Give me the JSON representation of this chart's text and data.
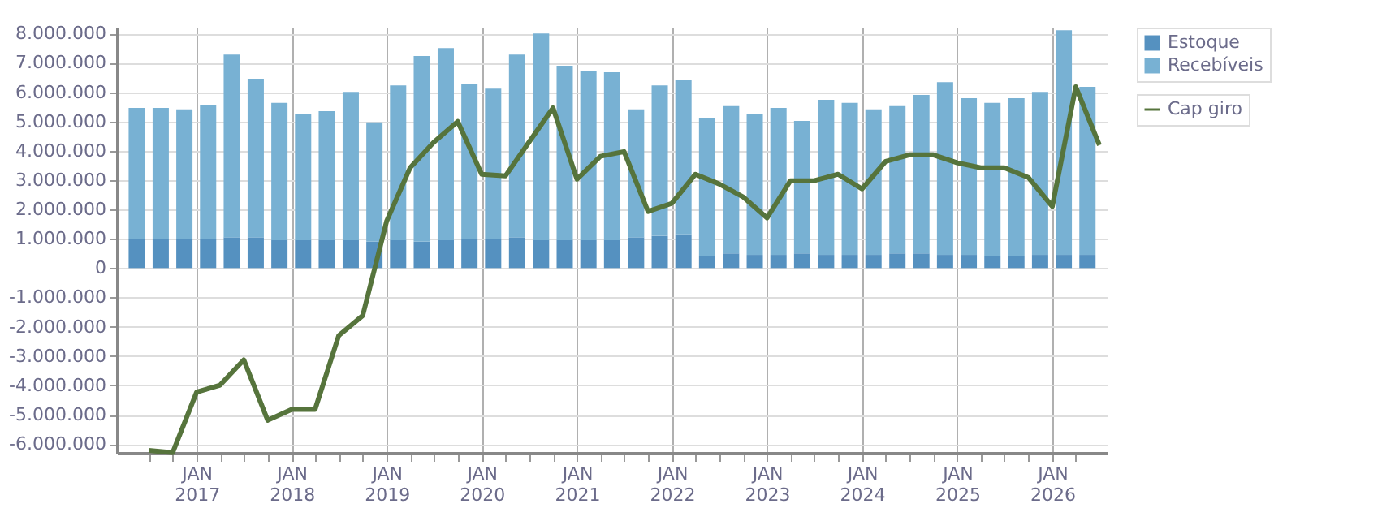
{
  "chart_data": {
    "type": "bar",
    "stacked": true,
    "series": [
      {
        "name": "Estoque",
        "color": "#5591c0",
        "x": [
          "2016-05-16",
          "2016-08-16",
          "2016-11-15",
          "2017-02-14",
          "2017-05-16",
          "2017-08-16",
          "2017-11-15",
          "2018-02-14",
          "2018-05-16",
          "2018-08-16",
          "2018-11-15",
          "2019-02-14",
          "2019-05-16",
          "2019-08-16",
          "2019-11-15",
          "2020-02-14",
          "2020-05-16",
          "2020-08-16",
          "2020-11-15",
          "2021-02-14",
          "2021-05-16",
          "2021-08-16",
          "2021-11-15",
          "2022-02-14",
          "2022-05-16",
          "2022-08-16",
          "2022-11-15",
          "2023-02-14",
          "2023-05-16",
          "2023-08-16",
          "2023-11-15",
          "2024-02-14",
          "2024-05-16",
          "2024-08-16",
          "2024-11-15",
          "2025-02-14",
          "2025-05-16",
          "2025-08-16",
          "2025-11-15",
          "2026-02-14",
          "2026-05-16"
        ],
        "values": [
          1000000,
          1000000,
          1000000,
          1000000,
          1050000,
          1050000,
          950000,
          950000,
          950000,
          950000,
          900000,
          950000,
          900000,
          950000,
          1000000,
          1000000,
          1050000,
          950000,
          950000,
          950000,
          950000,
          1050000,
          1100000,
          1150000,
          400000,
          500000,
          450000,
          450000,
          500000,
          450000,
          450000,
          450000,
          500000,
          500000,
          450000,
          450000,
          400000,
          400000,
          450000,
          450000,
          450000
        ]
      },
      {
        "name": "Recebíveis",
        "color": "#78b1d3",
        "x": [
          "2016-05-16",
          "2016-08-16",
          "2016-11-15",
          "2017-02-14",
          "2017-05-16",
          "2017-08-16",
          "2017-11-15",
          "2018-02-14",
          "2018-05-16",
          "2018-08-16",
          "2018-11-15",
          "2019-02-14",
          "2019-05-16",
          "2019-08-16",
          "2019-11-15",
          "2020-02-14",
          "2020-05-16",
          "2020-08-16",
          "2020-11-15",
          "2021-02-14",
          "2021-05-16",
          "2021-08-16",
          "2021-11-15",
          "2022-02-14",
          "2022-05-16",
          "2022-08-16",
          "2022-11-15",
          "2023-02-14",
          "2023-05-16",
          "2023-08-16",
          "2023-11-15",
          "2024-02-14",
          "2024-05-16",
          "2024-08-16",
          "2024-11-15",
          "2025-02-14",
          "2025-05-16",
          "2025-08-16",
          "2025-11-15",
          "2026-02-14",
          "2026-05-16"
        ],
        "values": [
          4460000,
          4460000,
          4410000,
          4570000,
          6230000,
          5410000,
          4680000,
          4290000,
          4400000,
          5060000,
          4070000,
          5280000,
          6330000,
          6550000,
          5290000,
          5120000,
          6230000,
          7050000,
          5950000,
          5780000,
          5730000,
          4360000,
          5130000,
          5250000,
          4730000,
          5020000,
          4790000,
          5010000,
          4520000,
          5290000,
          5180000,
          4960000,
          5020000,
          5400000,
          5890000,
          5340000,
          5230000,
          5390000,
          5560000,
          7660000,
          5730000
        ]
      },
      {
        "name": "Cap giro",
        "type": "line",
        "color": "#56743c",
        "x": [
          "2016-07-01",
          "2016-10-01",
          "2017-01-01",
          "2017-04-01",
          "2017-07-01",
          "2017-10-01",
          "2018-01-01",
          "2018-04-01",
          "2018-07-01",
          "2018-10-01",
          "2019-01-01",
          "2019-04-01",
          "2019-07-01",
          "2019-10-01",
          "2020-01-01",
          "2020-04-01",
          "2020-07-01",
          "2020-10-01",
          "2021-01-01",
          "2021-04-01",
          "2021-07-01",
          "2021-10-01",
          "2022-01-01",
          "2022-04-01",
          "2022-07-01",
          "2022-10-01",
          "2023-01-01",
          "2023-04-01",
          "2023-07-01",
          "2023-10-01",
          "2024-01-01",
          "2024-04-01",
          "2024-07-01",
          "2024-10-01",
          "2025-01-01",
          "2025-04-01",
          "2025-07-01",
          "2025-10-01",
          "2026-01-01",
          "2026-04-01",
          "2026-07-01"
        ],
        "values": [
          -6220000,
          -6290000,
          -4230000,
          -3990000,
          -3130000,
          -5190000,
          -4820000,
          -4820000,
          -2300000,
          -1620000,
          1600000,
          3420000,
          4290000,
          5000000,
          3200000,
          3140000,
          4300000,
          5460000,
          3030000,
          3810000,
          3970000,
          1930000,
          2210000,
          3200000,
          2870000,
          2430000,
          1710000,
          2980000,
          2980000,
          3200000,
          2700000,
          3640000,
          3860000,
          3860000,
          3590000,
          3420000,
          3420000,
          3090000,
          2100000,
          6180000,
          4190000
        ]
      }
    ],
    "xlim": [
      "2016-04-01",
      "2026-07-01"
    ],
    "xticks": [
      {
        "value": "2016-07-01",
        "label": null
      },
      {
        "value": "2016-10-01",
        "label": null
      },
      {
        "value": "2017-01-01",
        "label": "JAN 2017"
      },
      {
        "value": "2017-04-01",
        "label": null
      },
      {
        "value": "2017-07-01",
        "label": null
      },
      {
        "value": "2017-10-01",
        "label": null
      },
      {
        "value": "2018-01-01",
        "label": "JAN 2018"
      },
      {
        "value": "2018-04-01",
        "label": null
      },
      {
        "value": "2018-07-01",
        "label": null
      },
      {
        "value": "2018-10-01",
        "label": null
      },
      {
        "value": "2019-01-01",
        "label": "JAN 2019"
      },
      {
        "value": "2019-04-01",
        "label": null
      },
      {
        "value": "2019-07-01",
        "label": null
      },
      {
        "value": "2019-10-01",
        "label": null
      },
      {
        "value": "2020-01-01",
        "label": "JAN 2020"
      },
      {
        "value": "2020-04-01",
        "label": null
      },
      {
        "value": "2020-07-01",
        "label": null
      },
      {
        "value": "2020-10-01",
        "label": null
      },
      {
        "value": "2021-01-01",
        "label": "JAN 2021"
      },
      {
        "value": "2021-04-01",
        "label": null
      },
      {
        "value": "2021-07-01",
        "label": null
      },
      {
        "value": "2021-10-01",
        "label": null
      },
      {
        "value": "2022-01-01",
        "label": "JAN 2022"
      },
      {
        "value": "2022-04-01",
        "label": null
      },
      {
        "value": "2022-07-01",
        "label": null
      },
      {
        "value": "2022-10-01",
        "label": null
      },
      {
        "value": "2023-01-01",
        "label": "JAN 2023"
      },
      {
        "value": "2023-04-01",
        "label": null
      },
      {
        "value": "2023-07-01",
        "label": null
      },
      {
        "value": "2023-10-01",
        "label": null
      },
      {
        "value": "2024-01-01",
        "label": "JAN 2024"
      },
      {
        "value": "2024-04-01",
        "label": null
      },
      {
        "value": "2024-07-01",
        "label": null
      },
      {
        "value": "2024-10-01",
        "label": null
      },
      {
        "value": "2025-01-01",
        "label": "JAN 2025"
      },
      {
        "value": "2025-04-01",
        "label": null
      },
      {
        "value": "2025-07-01",
        "label": null
      },
      {
        "value": "2025-10-01",
        "label": null
      },
      {
        "value": "2026-01-01",
        "label": "JAN 2026"
      },
      {
        "value": "2026-04-01",
        "label": null
      }
    ],
    "ylim": [
      -6300000,
      8200000
    ],
    "yticks": [
      {
        "value": -6000000,
        "label": "-6.000.000"
      },
      {
        "value": -5000000,
        "label": "-5.000.000"
      },
      {
        "value": -4000000,
        "label": "-4.000.000"
      },
      {
        "value": -3000000,
        "label": "-3.000.000"
      },
      {
        "value": -2000000,
        "label": "-2.000.000"
      },
      {
        "value": -1000000,
        "label": "-1.000.000"
      },
      {
        "value": 0,
        "label": "0"
      },
      {
        "value": 1000000,
        "label": "1.000.000"
      },
      {
        "value": 2000000,
        "label": "2.000.000"
      },
      {
        "value": 3000000,
        "label": "3.000.000"
      },
      {
        "value": 4000000,
        "label": "4.000.000"
      },
      {
        "value": 5000000,
        "label": "5.000.000"
      },
      {
        "value": 6000000,
        "label": "6.000.000"
      },
      {
        "value": 7000000,
        "label": "7.000.000"
      },
      {
        "value": 8000000,
        "label": "8.000.000"
      }
    ],
    "grid": true,
    "legend": "top right",
    "line_style": "solid",
    "marker": "none"
  }
}
